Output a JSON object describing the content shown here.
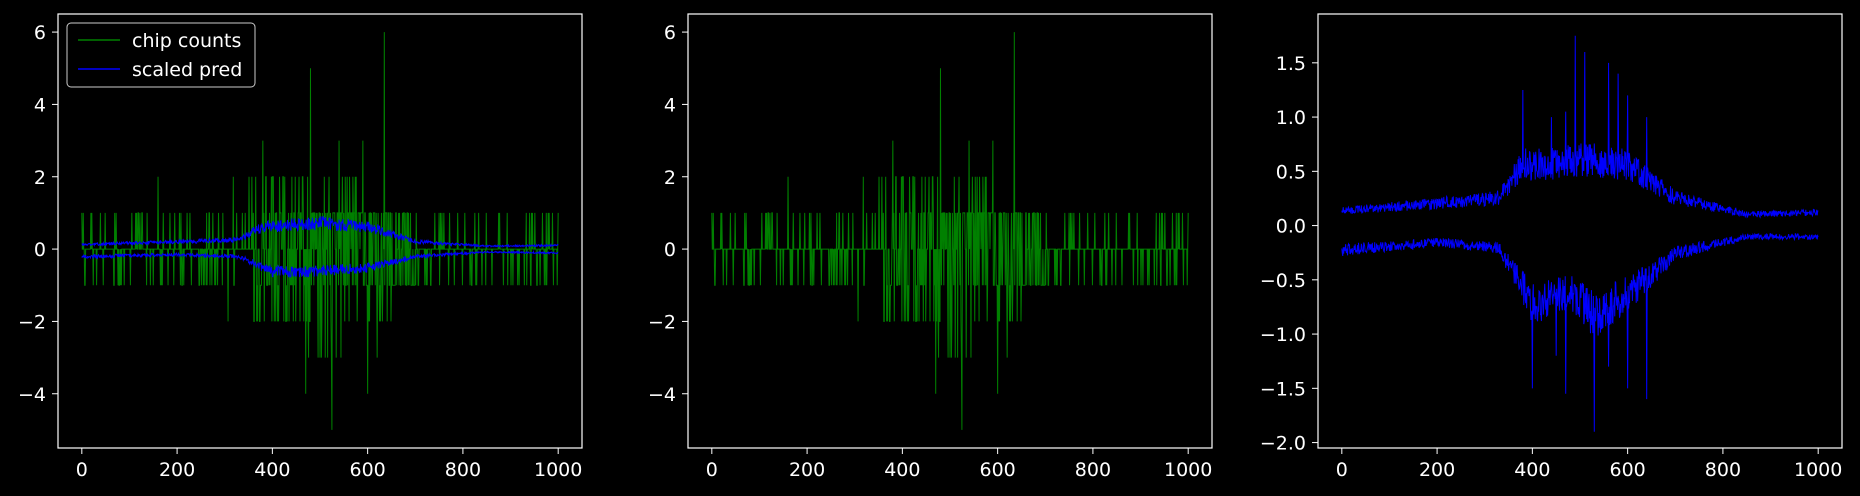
{
  "chart_data": [
    {
      "type": "line",
      "x_range": [
        0,
        1000
      ],
      "xlim": [
        -50,
        1050
      ],
      "ylim": [
        -5.5,
        6.5
      ],
      "xticks": [
        0,
        200,
        400,
        600,
        800,
        1000
      ],
      "yticks": [
        -4,
        -2,
        0,
        2,
        4,
        6
      ],
      "grid": false,
      "legend": {
        "placement": "top-left",
        "entries": [
          {
            "label": "chip counts",
            "color": "#008000"
          },
          {
            "label": "scaled pred",
            "color": "#0000ff"
          }
        ]
      },
      "series": [
        {
          "name": "chip counts",
          "color": "#008000",
          "kind": "integer-spikes",
          "peaks": [
            {
              "x": 160,
              "y": 2
            },
            {
              "x": 380,
              "y": 3
            },
            {
              "x": 480,
              "y": 5
            },
            {
              "x": 525,
              "y": -5
            },
            {
              "x": 470,
              "y": -4
            },
            {
              "x": 500,
              "y": -3
            },
            {
              "x": 540,
              "y": 3
            },
            {
              "x": 590,
              "y": 3
            },
            {
              "x": 635,
              "y": 6
            },
            {
              "x": 600,
              "y": -4
            },
            {
              "x": 620,
              "y": -3
            }
          ],
          "envelope": [
            {
              "x": 0,
              "max": 1,
              "min": -1
            },
            {
              "x": 200,
              "max": 1,
              "min": -1
            },
            {
              "x": 370,
              "max": 2,
              "min": -2
            },
            {
              "x": 500,
              "max": 2,
              "min": -3
            },
            {
              "x": 700,
              "max": 1,
              "min": -1
            },
            {
              "x": 1000,
              "max": 1,
              "min": -1
            }
          ]
        },
        {
          "name": "scaled pred",
          "color": "#0000ff",
          "kind": "band",
          "upper": [
            [
              0,
              0.12
            ],
            [
              200,
              0.2
            ],
            [
              330,
              0.25
            ],
            [
              380,
              0.6
            ],
            [
              500,
              0.7
            ],
            [
              600,
              0.6
            ],
            [
              700,
              0.2
            ],
            [
              850,
              0.08
            ],
            [
              1000,
              0.1
            ]
          ],
          "lower": [
            [
              0,
              -0.2
            ],
            [
              200,
              -0.15
            ],
            [
              330,
              -0.2
            ],
            [
              400,
              -0.6
            ],
            [
              500,
              -0.6
            ],
            [
              600,
              -0.5
            ],
            [
              700,
              -0.2
            ],
            [
              850,
              -0.08
            ],
            [
              1000,
              -0.1
            ]
          ]
        }
      ]
    },
    {
      "type": "line",
      "x_range": [
        0,
        1000
      ],
      "xlim": [
        -50,
        1050
      ],
      "ylim": [
        -5.5,
        6.5
      ],
      "xticks": [
        0,
        200,
        400,
        600,
        800,
        1000
      ],
      "yticks": [
        -4,
        -2,
        0,
        2,
        4,
        6
      ],
      "grid": false,
      "series": [
        {
          "color": "#008000",
          "kind": "integer-spikes",
          "peaks": [
            {
              "x": 160,
              "y": 2
            },
            {
              "x": 380,
              "y": 3
            },
            {
              "x": 480,
              "y": 5
            },
            {
              "x": 525,
              "y": -5
            },
            {
              "x": 470,
              "y": -4
            },
            {
              "x": 500,
              "y": -3
            },
            {
              "x": 540,
              "y": 3
            },
            {
              "x": 590,
              "y": 3
            },
            {
              "x": 635,
              "y": 6
            },
            {
              "x": 600,
              "y": -4
            },
            {
              "x": 620,
              "y": -3
            }
          ],
          "envelope": [
            {
              "x": 0,
              "max": 1,
              "min": -1
            },
            {
              "x": 200,
              "max": 1,
              "min": -1
            },
            {
              "x": 370,
              "max": 2,
              "min": -2
            },
            {
              "x": 500,
              "max": 2,
              "min": -3
            },
            {
              "x": 700,
              "max": 1,
              "min": -1
            },
            {
              "x": 1000,
              "max": 1,
              "min": -1
            }
          ]
        }
      ]
    },
    {
      "type": "line",
      "x_range": [
        0,
        1000
      ],
      "xlim": [
        -50,
        1050
      ],
      "ylim": [
        -2.05,
        1.95
      ],
      "xticks": [
        0,
        200,
        400,
        600,
        800,
        1000
      ],
      "yticks": [
        -2.0,
        -1.5,
        -1.0,
        -0.5,
        0.0,
        0.5,
        1.0,
        1.5
      ],
      "ytick_labels": [
        "−2.0",
        "−1.5",
        "−1.0",
        "−0.5",
        "0.0",
        "0.5",
        "1.0",
        "1.5"
      ],
      "grid": false,
      "series": [
        {
          "color": "#0000ff",
          "kind": "band",
          "upper": [
            [
              0,
              0.13
            ],
            [
              200,
              0.2
            ],
            [
              330,
              0.25
            ],
            [
              380,
              0.55
            ],
            [
              450,
              0.55
            ],
            [
              500,
              0.6
            ],
            [
              600,
              0.55
            ],
            [
              700,
              0.25
            ],
            [
              850,
              0.1
            ],
            [
              1000,
              0.12
            ]
          ],
          "lower": [
            [
              0,
              -0.22
            ],
            [
              200,
              -0.15
            ],
            [
              330,
              -0.2
            ],
            [
              400,
              -0.7
            ],
            [
              480,
              -0.6
            ],
            [
              530,
              -0.8
            ],
            [
              620,
              -0.55
            ],
            [
              700,
              -0.25
            ],
            [
              850,
              -0.1
            ],
            [
              1000,
              -0.1
            ]
          ],
          "spikes_up": [
            [
              380,
              1.25
            ],
            [
              440,
              1.0
            ],
            [
              470,
              1.05
            ],
            [
              490,
              1.75
            ],
            [
              510,
              1.6
            ],
            [
              560,
              1.5
            ],
            [
              580,
              1.4
            ],
            [
              600,
              1.2
            ],
            [
              640,
              1.0
            ]
          ],
          "spikes_down": [
            [
              400,
              -1.5
            ],
            [
              450,
              -1.2
            ],
            [
              470,
              -1.55
            ],
            [
              530,
              -1.9
            ],
            [
              560,
              -1.3
            ],
            [
              600,
              -1.5
            ],
            [
              640,
              -1.6
            ]
          ]
        }
      ]
    }
  ]
}
